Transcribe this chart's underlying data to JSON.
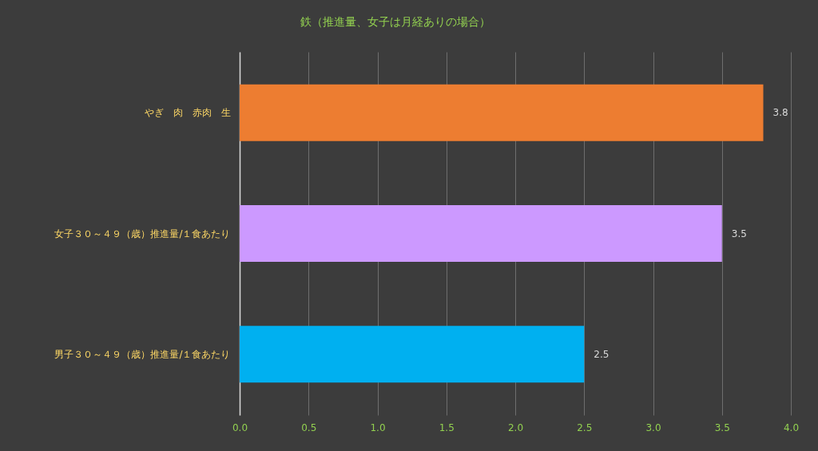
{
  "chart_data": {
    "type": "bar",
    "orientation": "horizontal",
    "title": "鉄（推進量、女子は月経ありの場合）",
    "categories": [
      "やぎ　肉　赤肉　生",
      "女子３０～４９（歳）推進量/１食あたり",
      "男子３０～４９（歳）推進量/１食あたり"
    ],
    "values": [
      3.8,
      3.5,
      2.5
    ],
    "colors": [
      "#ed7d31",
      "#cc99ff",
      "#00b0f0"
    ],
    "xlim": [
      0,
      4
    ],
    "xticks": [
      {
        "value": 0,
        "label": "0.0"
      },
      {
        "value": 0.5,
        "label": "0.5"
      },
      {
        "value": 1,
        "label": "1.0"
      },
      {
        "value": 1.5,
        "label": "1.5"
      },
      {
        "value": 2,
        "label": "2.0"
      },
      {
        "value": 2.5,
        "label": "2.5"
      },
      {
        "value": 3,
        "label": "3.0"
      },
      {
        "value": 3.5,
        "label": "3.5"
      },
      {
        "value": 4,
        "label": "4.0"
      }
    ],
    "grid": "x",
    "data_labels": true
  }
}
